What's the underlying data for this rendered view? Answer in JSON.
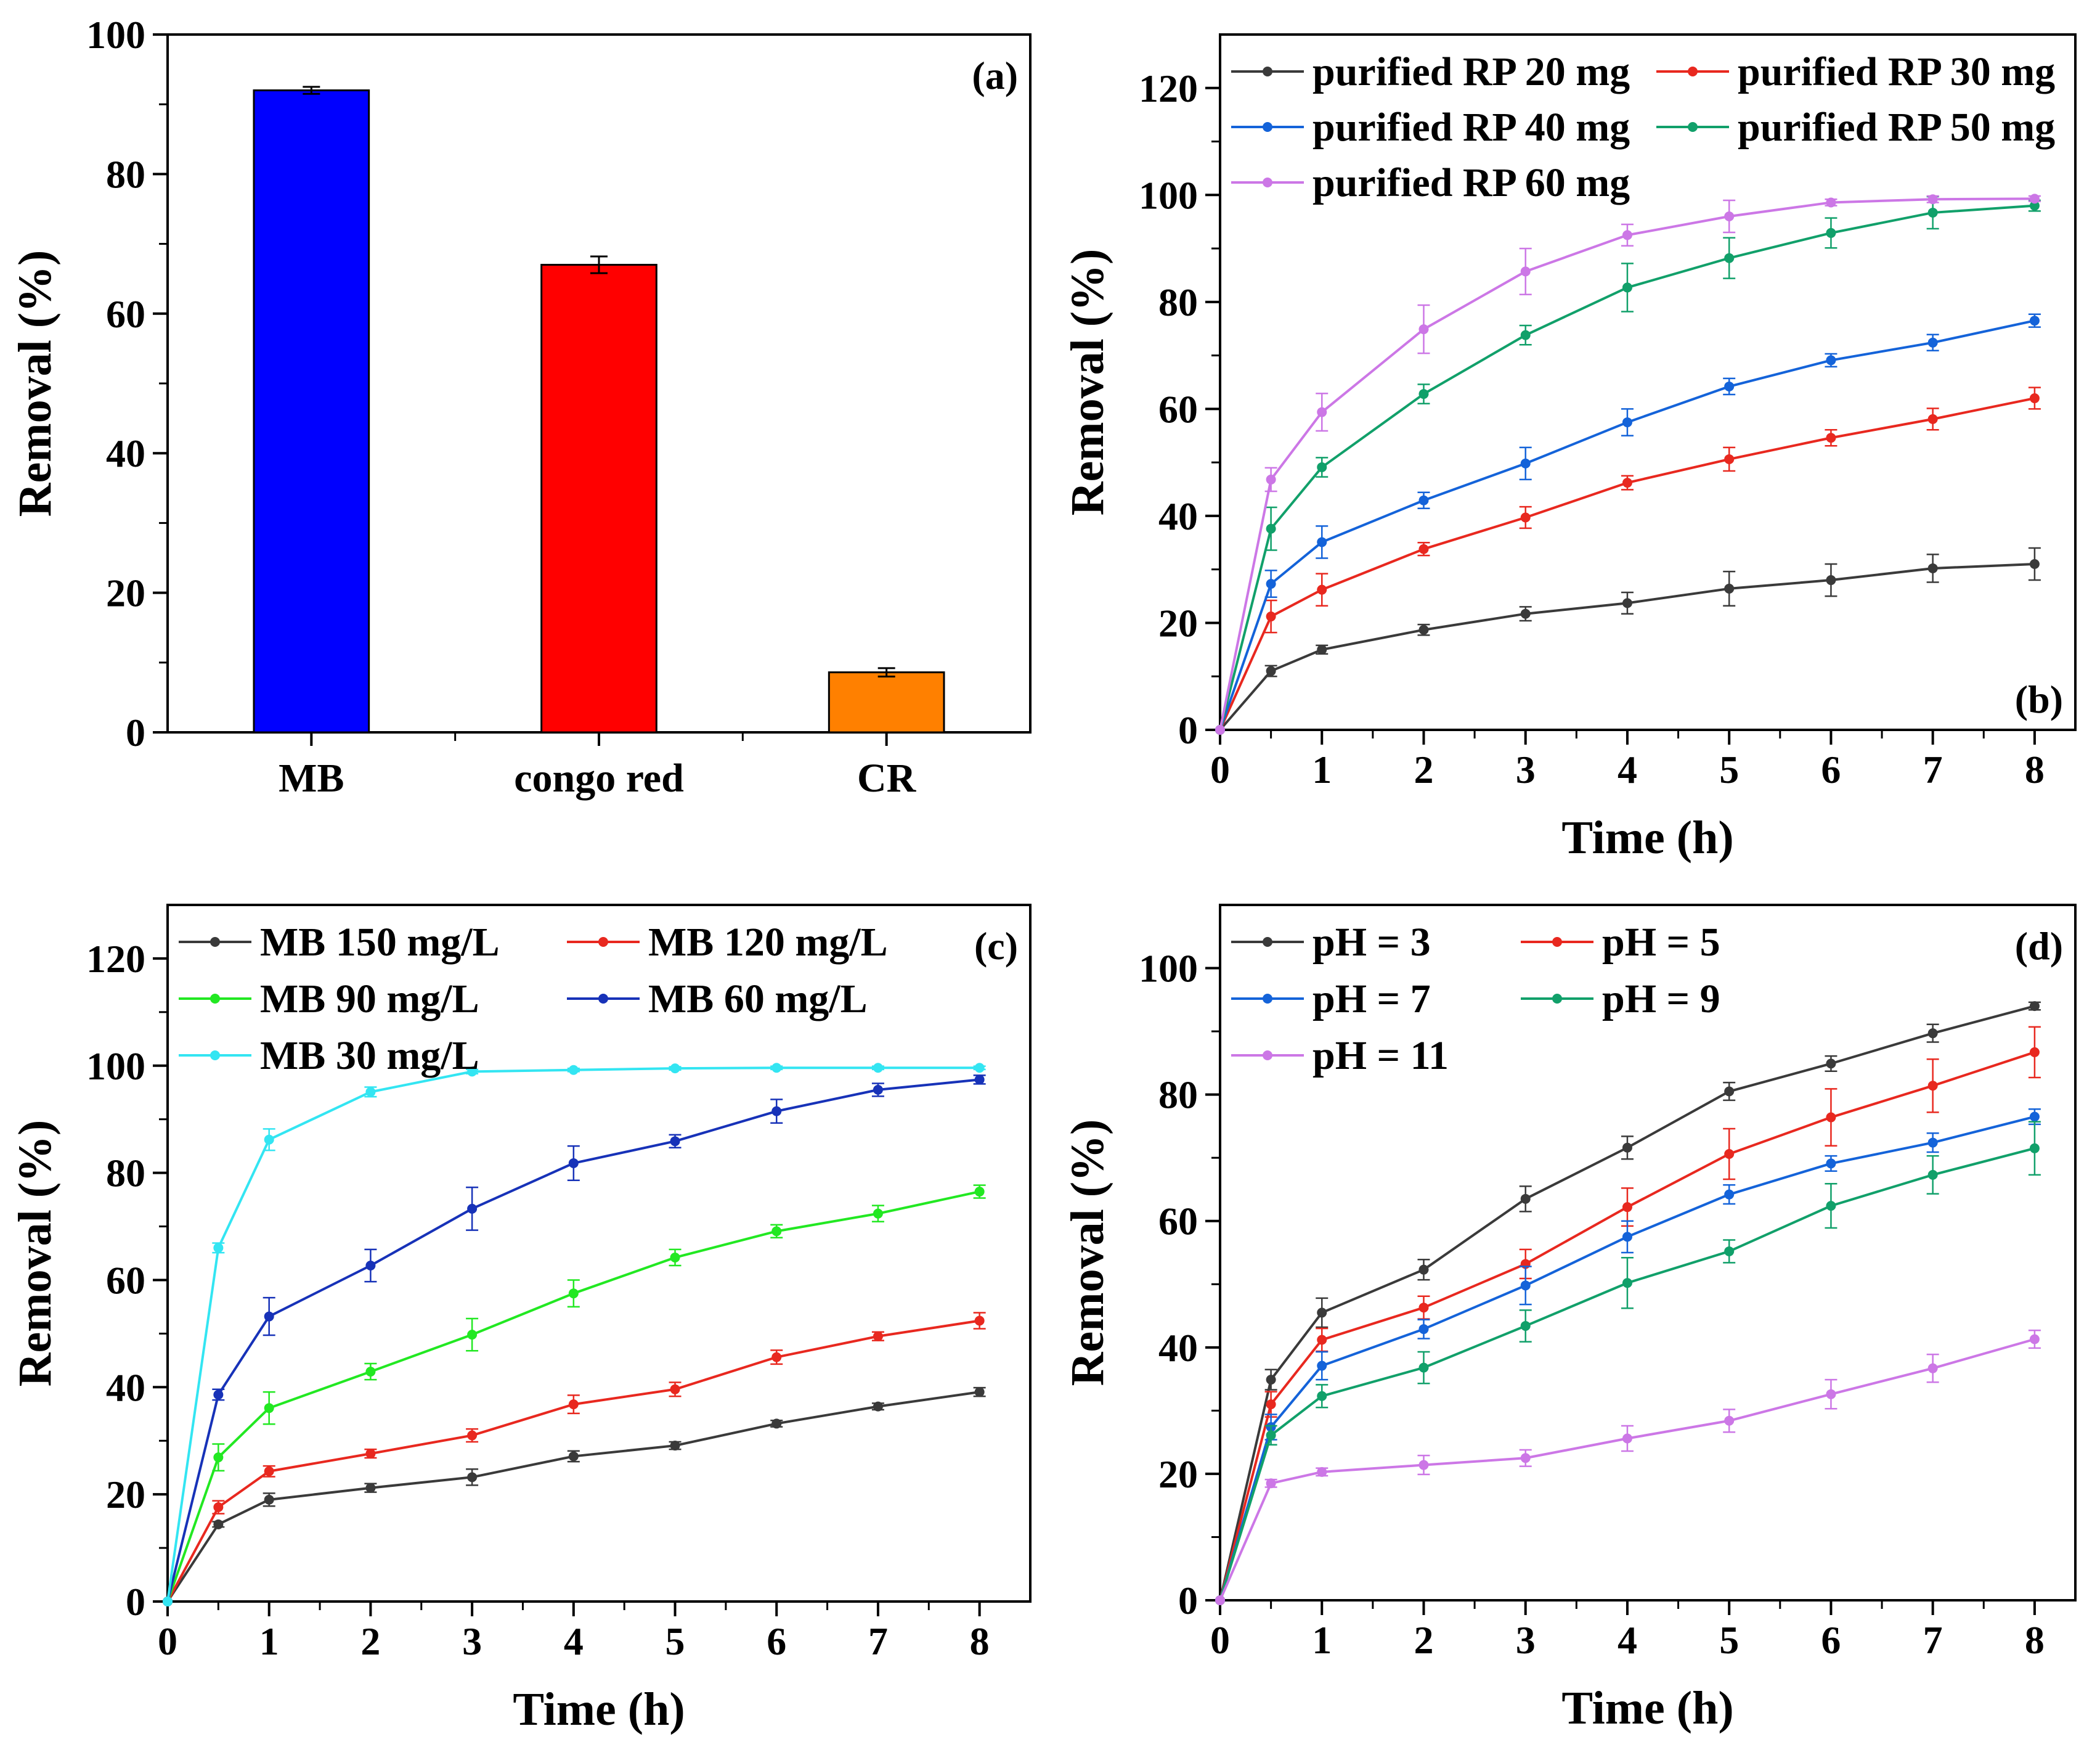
{
  "chart_data": [
    {
      "id": "a",
      "type": "bar",
      "panel_label": "(a)",
      "ylabel": "Removal (%)",
      "xlabel": "",
      "ylim": [
        0,
        100
      ],
      "yticks": [
        0,
        20,
        40,
        60,
        80,
        100
      ],
      "categories": [
        "MB",
        "congo red",
        "CR"
      ],
      "values": [
        92,
        67,
        8.6
      ],
      "errors": [
        0.5,
        1.2,
        0.6
      ],
      "colors": [
        "#0000ff",
        "#ff0000",
        "#ff8000"
      ]
    },
    {
      "id": "b",
      "type": "line",
      "panel_label": "(b)",
      "xlabel": "Time (h)",
      "ylabel": "Removal (%)",
      "xlim": [
        0,
        8.4
      ],
      "ylim": [
        0,
        130
      ],
      "xticks": [
        0,
        1,
        2,
        3,
        4,
        5,
        6,
        7,
        8
      ],
      "yticks": [
        0,
        20,
        40,
        60,
        80,
        100,
        120
      ],
      "legend_cols": 2,
      "x": [
        0,
        0.5,
        1,
        2,
        3,
        4,
        5,
        6,
        7,
        8
      ],
      "series": [
        {
          "name": "purified RP 20 mg",
          "color": "#3a3a3a",
          "values": [
            0,
            11,
            15,
            18.7,
            21.7,
            23.7,
            26.4,
            28,
            30.2,
            31
          ],
          "errors": [
            0,
            1,
            0.8,
            1,
            1.3,
            2,
            3.2,
            3,
            2.6,
            3
          ]
        },
        {
          "name": "purified RP 30 mg",
          "color": "#e8281f",
          "values": [
            0,
            21.2,
            26.2,
            33.8,
            39.7,
            46.2,
            50.6,
            54.6,
            58.1,
            62
          ],
          "errors": [
            0,
            3,
            3,
            1.2,
            2,
            1.3,
            2.2,
            1.5,
            2,
            2
          ]
        },
        {
          "name": "purified RP 40 mg",
          "color": "#1463d9",
          "values": [
            0,
            27.3,
            35.1,
            42.9,
            49.8,
            57.5,
            64.2,
            69.1,
            72.4,
            76.5
          ],
          "errors": [
            0,
            2.5,
            3,
            1.5,
            3,
            2.5,
            1.5,
            1.2,
            1.5,
            1.2
          ]
        },
        {
          "name": "purified RP 50 mg",
          "color": "#11a06a",
          "values": [
            0,
            37.6,
            49.1,
            62.8,
            73.8,
            82.7,
            88.2,
            92.9,
            96.7,
            98
          ],
          "errors": [
            0,
            4,
            1.8,
            1.8,
            1.8,
            4.5,
            3.8,
            2.8,
            3,
            1
          ]
        },
        {
          "name": "purified RP 60 mg",
          "color": "#cc77e6",
          "values": [
            0,
            46.8,
            59.4,
            74.9,
            85.7,
            92.5,
            96,
            98.6,
            99.2,
            99.3
          ],
          "errors": [
            0,
            2.2,
            3.5,
            4.5,
            4.3,
            2,
            3,
            0.6,
            0.6,
            0.5
          ]
        }
      ]
    },
    {
      "id": "c",
      "type": "line",
      "panel_label": "(c)",
      "xlabel": "Time (h)",
      "ylabel": "Removal (%)",
      "xlim": [
        0,
        8.5
      ],
      "ylim": [
        0,
        130
      ],
      "xticks": [
        0,
        1,
        2,
        3,
        4,
        5,
        6,
        7,
        8
      ],
      "yticks": [
        0,
        20,
        40,
        60,
        80,
        100,
        120
      ],
      "legend_cols": 2,
      "x": [
        0,
        0.5,
        1,
        2,
        3,
        4,
        5,
        6,
        7,
        8
      ],
      "series": [
        {
          "name": "MB 150 mg/L",
          "color": "#3a3a3a",
          "values": [
            0,
            14.4,
            19,
            21.2,
            23.2,
            27.1,
            29.1,
            33.2,
            36.4,
            39.1
          ],
          "errors": [
            0,
            0.5,
            1.2,
            0.8,
            1.5,
            1,
            0.7,
            0.6,
            0.6,
            0.8
          ]
        },
        {
          "name": "MB 120 mg/L",
          "color": "#e8281f",
          "values": [
            0,
            17.6,
            24.3,
            27.6,
            31,
            36.8,
            39.6,
            45.6,
            49.5,
            52.4
          ],
          "errors": [
            0,
            1.2,
            1,
            0.8,
            1.2,
            1.7,
            1.3,
            1.3,
            0.8,
            1.5
          ]
        },
        {
          "name": "MB 90 mg/L",
          "color": "#22e822",
          "values": [
            0,
            26.9,
            36.1,
            42.9,
            49.8,
            57.5,
            64.2,
            69.1,
            72.4,
            76.5
          ],
          "errors": [
            0,
            2.5,
            3,
            1.5,
            3,
            2.5,
            1.5,
            1.2,
            1.5,
            1.2
          ]
        },
        {
          "name": "MB 60 mg/L",
          "color": "#1732b8",
          "values": [
            0,
            38.6,
            53.2,
            62.7,
            73.3,
            81.8,
            85.9,
            91.5,
            95.5,
            97.4
          ],
          "errors": [
            0,
            1,
            3.5,
            3,
            4,
            3.2,
            1.2,
            2.2,
            1.2,
            0.8
          ]
        },
        {
          "name": "MB 30 mg/L",
          "color": "#33e5f2",
          "values": [
            0,
            66,
            86.2,
            95.1,
            98.9,
            99.2,
            99.5,
            99.6,
            99.6,
            99.6
          ],
          "errors": [
            0,
            0.9,
            2,
            0.9,
            0.4,
            0.3,
            0.3,
            0.3,
            0.3,
            0.3
          ]
        }
      ]
    },
    {
      "id": "d",
      "type": "line",
      "panel_label": "(d)",
      "xlabel": "Time (h)",
      "ylabel": "Removal (%)",
      "xlim": [
        0,
        8.4
      ],
      "ylim": [
        0,
        110
      ],
      "xticks": [
        0,
        1,
        2,
        3,
        4,
        5,
        6,
        7,
        8
      ],
      "yticks": [
        0,
        20,
        40,
        60,
        80,
        100
      ],
      "legend_cols": 2,
      "x": [
        0,
        0.5,
        1,
        2,
        3,
        4,
        5,
        6,
        7,
        8
      ],
      "series": [
        {
          "name": "pH = 3",
          "color": "#3a3a3a",
          "values": [
            0,
            34.9,
            45.5,
            52.3,
            63.5,
            71.6,
            80.5,
            84.9,
            89.7,
            94
          ],
          "errors": [
            0,
            1.6,
            2.3,
            1.6,
            2,
            1.8,
            1.4,
            1.2,
            1.4,
            0.6
          ]
        },
        {
          "name": "pH = 5",
          "color": "#e8281f",
          "values": [
            0,
            31,
            41.2,
            46.3,
            53.2,
            62.2,
            70.6,
            76.4,
            81.4,
            86.7
          ],
          "errors": [
            0,
            2,
            1.8,
            1.8,
            2.3,
            3,
            4,
            4.5,
            4.2,
            4
          ]
        },
        {
          "name": "pH = 7",
          "color": "#1463d9",
          "values": [
            0,
            27.4,
            37.1,
            42.9,
            49.8,
            57.5,
            64.2,
            69.1,
            72.4,
            76.5
          ],
          "errors": [
            0,
            2,
            2.2,
            1.5,
            3,
            2.5,
            1.5,
            1.2,
            1.5,
            1.2
          ]
        },
        {
          "name": "pH = 9",
          "color": "#11a06a",
          "values": [
            0,
            26.1,
            32.3,
            36.8,
            43.4,
            50.2,
            55.2,
            62.4,
            67.3,
            71.5
          ],
          "errors": [
            0,
            1.5,
            1.8,
            2.5,
            2.5,
            4,
            1.8,
            3.5,
            3,
            4.2
          ]
        },
        {
          "name": "pH = 11",
          "color": "#cc77e6",
          "values": [
            0,
            18.5,
            20.3,
            21.4,
            22.5,
            25.6,
            28.4,
            32.6,
            36.7,
            41.3
          ],
          "errors": [
            0,
            0.6,
            0.6,
            1.5,
            1.3,
            2,
            1.8,
            2.3,
            2.2,
            1.4
          ]
        }
      ]
    }
  ]
}
